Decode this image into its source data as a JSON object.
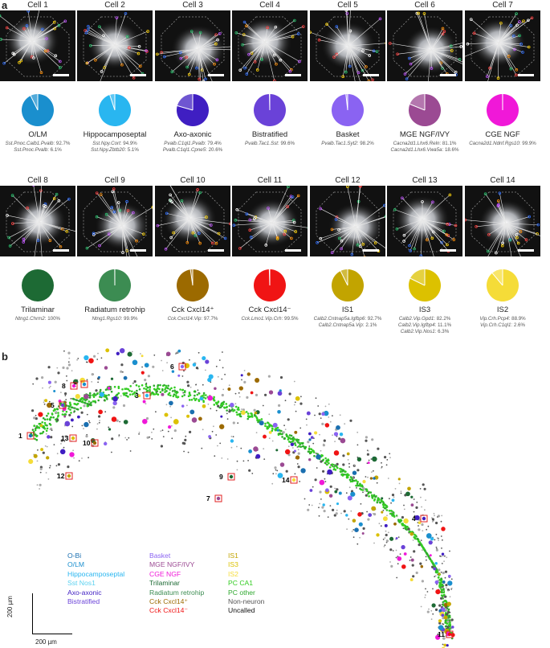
{
  "panel_a_letter": "a",
  "panel_b_letter": "b",
  "cells": [
    {
      "title": "Cell 1",
      "type": "O/LM",
      "color": "#1a8fce",
      "frac": 0.927,
      "comp": [
        [
          "Sst.Pnoc.Calb1.Pvalb",
          "92.7%"
        ],
        [
          "Sst.Pnoc.Pvalb",
          "6.1%"
        ]
      ]
    },
    {
      "title": "Cell 2",
      "type": "Hippocamposeptal",
      "color": "#29b6f0",
      "frac": 0.949,
      "comp": [
        [
          "Sst.Npy.Cort",
          "94.9%"
        ],
        [
          "Sst.Npy.Zbtb20",
          "5.1%"
        ]
      ]
    },
    {
      "title": "Cell 3",
      "type": "Axo-axonic",
      "color": "#3f1ec2",
      "frac": 0.794,
      "comp": [
        [
          "Pvalb.C1ql1.Pvalb",
          "79.4%"
        ],
        [
          "Pvalb.C1ql1.Cpne5",
          "20.6%"
        ]
      ]
    },
    {
      "title": "Cell 4",
      "type": "Bistratified",
      "color": "#6a42d8",
      "frac": 0.996,
      "comp": [
        [
          "Pvalb.Tac1.Sst",
          "99.6%"
        ]
      ]
    },
    {
      "title": "Cell 5",
      "type": "Basket",
      "color": "#8a63f2",
      "frac": 0.982,
      "comp": [
        [
          "Pvalb.Tac1.Syt2",
          "98.2%"
        ]
      ]
    },
    {
      "title": "Cell 6",
      "type": "MGE NGF/IVY",
      "color": "#9b4a93",
      "frac": 0.811,
      "comp": [
        [
          "Cacna2d1.Lhx6.Reln",
          "81.1%"
        ],
        [
          "Cacna2d1.Lhx6.Vwa5a",
          "18.6%"
        ]
      ]
    },
    {
      "title": "Cell 7",
      "type": "CGE NGF",
      "color": "#f018d8",
      "frac": 0.999,
      "comp": [
        [
          "Cacna2d1.Ndnf.Rgs10",
          "99.9%"
        ]
      ]
    },
    {
      "title": "Cell 8",
      "type": "Trilaminar",
      "color": "#1d6a34",
      "frac": 1.0,
      "comp": [
        [
          "Ntng1.Chrm2",
          "100%"
        ]
      ]
    },
    {
      "title": "Cell 9",
      "type": "Radiatum retrohip",
      "color": "#3c8c52",
      "frac": 0.999,
      "comp": [
        [
          "Ntng1.Rgs10",
          "99.9%"
        ]
      ]
    },
    {
      "title": "Cell 10",
      "type": "Cck Cxcl14⁺",
      "color": "#9c6a00",
      "frac": 0.977,
      "comp": [
        [
          "Cck.Cxcl14.Vip",
          "97.7%"
        ]
      ]
    },
    {
      "title": "Cell 11",
      "type": "Cck Cxcl14⁻",
      "color": "#f01414",
      "frac": 0.995,
      "comp": [
        [
          "Cck.Lmo1.Vip.Crh",
          "99.5%"
        ]
      ]
    },
    {
      "title": "Cell 12",
      "type": "IS1",
      "color": "#c2a400",
      "frac": 0.927,
      "comp": [
        [
          "Calb2.Cntnap5a.Igfbp6",
          "92.7%"
        ],
        [
          "Calb2.Cntnap5a.Vip",
          "2.1%"
        ]
      ]
    },
    {
      "title": "Cell 13",
      "type": "IS3",
      "color": "#dcc100",
      "frac": 0.822,
      "comp": [
        [
          "Calb2.Vip.Gpd1",
          "82.2%"
        ],
        [
          "Calb2.Vip.Igfbp4",
          "11.1%"
        ],
        [
          "Calb2.Vip.Nos1",
          "6.3%"
        ]
      ]
    },
    {
      "title": "Cell 14",
      "type": "IS2",
      "color": "#f5dc38",
      "frac": 0.889,
      "comp": [
        [
          "Vip.Crh.Pcp4",
          "88.9%"
        ],
        [
          "Vip.Crh.C1ql1",
          "2.6%"
        ]
      ]
    }
  ],
  "legend": {
    "col1": [
      [
        "O-Bi",
        "#1a6fb0"
      ],
      [
        "O/LM",
        "#1a8fce"
      ],
      [
        "Hippocamposeptal",
        "#29b6f0"
      ],
      [
        "Sst Nos1",
        "#5ad1f0"
      ],
      [
        "Axo-axonic",
        "#3f1ec2"
      ],
      [
        "Bistratified",
        "#6a42d8"
      ]
    ],
    "col2": [
      [
        "Basket",
        "#8a63f2"
      ],
      [
        "MGE NGF/IVY",
        "#9b4a93"
      ],
      [
        "CGE NGF",
        "#f018d8"
      ],
      [
        "Trilaminar",
        "#1d6a34"
      ],
      [
        "Radiatum retrohip",
        "#3c8c52"
      ],
      [
        "Cck Cxcl14⁺",
        "#9c6a00"
      ],
      [
        "Cck Cxcl14⁻",
        "#f01414"
      ]
    ],
    "col3": [
      [
        "IS1",
        "#c2a400"
      ],
      [
        "IS3",
        "#dcc100"
      ],
      [
        "IS2",
        "#f5dc38"
      ],
      [
        "PC CA1",
        "#33cc22"
      ],
      [
        "PC other",
        "#2fa82f"
      ],
      [
        "Non-neuron",
        "#555555"
      ],
      [
        "Uncalled",
        "#111111"
      ]
    ]
  },
  "scale_v": "200 µm",
  "scale_h": "200 µm",
  "map_markers": [
    "1",
    "2",
    "3",
    "4",
    "5",
    "6",
    "7",
    "8",
    "9",
    "10",
    "11",
    "12",
    "13",
    "14"
  ]
}
